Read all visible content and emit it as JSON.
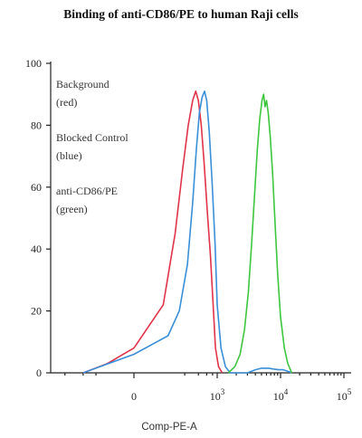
{
  "chart_data": {
    "type": "line",
    "title": "Binding of anti-CD86/PE to human Raji cells",
    "xlabel": "Comp-PE-A",
    "ylabel": "",
    "ylim": [
      0,
      100
    ],
    "x_scale": "biexponential",
    "x_ticks": [
      {
        "pos": 0,
        "main": "0",
        "exp": ""
      },
      {
        "pos": 1000,
        "main": "10",
        "exp": "3"
      },
      {
        "pos": 10000,
        "main": "10",
        "exp": "4"
      },
      {
        "pos": 100000,
        "main": "10",
        "exp": "5"
      }
    ],
    "y_ticks": [
      0,
      20,
      40,
      60,
      80,
      100
    ],
    "legend": [
      {
        "label": "Background",
        "sublabel": "(red)"
      },
      {
        "label": "Blocked Control",
        "sublabel": "(blue)"
      },
      {
        "label": "anti-CD86/PE",
        "sublabel": "(green)"
      }
    ],
    "series": [
      {
        "name": "Background (red)",
        "color": "#e0344a",
        "points": [
          [
            -200,
            0
          ],
          [
            -50,
            3
          ],
          [
            0,
            8
          ],
          [
            60,
            22
          ],
          [
            120,
            45
          ],
          [
            180,
            66
          ],
          [
            240,
            80
          ],
          [
            300,
            88
          ],
          [
            350,
            91
          ],
          [
            400,
            88
          ],
          [
            460,
            80
          ],
          [
            530,
            68
          ],
          [
            620,
            52
          ],
          [
            720,
            38
          ],
          [
            820,
            22
          ],
          [
            920,
            8
          ],
          [
            1050,
            2
          ],
          [
            1200,
            0
          ]
        ]
      },
      {
        "name": "Blocked Control (blue)",
        "color": "#3a8fd9",
        "points": [
          [
            -200,
            0
          ],
          [
            -80,
            2
          ],
          [
            0,
            6
          ],
          [
            80,
            12
          ],
          [
            150,
            20
          ],
          [
            230,
            35
          ],
          [
            300,
            55
          ],
          [
            360,
            72
          ],
          [
            420,
            84
          ],
          [
            480,
            89
          ],
          [
            540,
            91
          ],
          [
            600,
            88
          ],
          [
            680,
            78
          ],
          [
            780,
            62
          ],
          [
            900,
            42
          ],
          [
            1000,
            22
          ],
          [
            1150,
            8
          ],
          [
            1350,
            2
          ],
          [
            1600,
            0
          ],
          [
            3000,
            0
          ],
          [
            4000,
            1
          ],
          [
            5000,
            1.5
          ],
          [
            6500,
            1.5
          ],
          [
            8000,
            1.2
          ],
          [
            9500,
            1
          ],
          [
            11000,
            1
          ],
          [
            13000,
            0.5
          ],
          [
            15000,
            0
          ]
        ]
      },
      {
        "name": "anti-CD86/PE (green)",
        "color": "#3ec63e",
        "points": [
          [
            1500,
            0
          ],
          [
            1900,
            2
          ],
          [
            2300,
            6
          ],
          [
            2700,
            14
          ],
          [
            3100,
            26
          ],
          [
            3500,
            42
          ],
          [
            3900,
            58
          ],
          [
            4300,
            72
          ],
          [
            4700,
            82
          ],
          [
            5100,
            88
          ],
          [
            5400,
            90
          ],
          [
            5700,
            86
          ],
          [
            6000,
            88
          ],
          [
            6400,
            84
          ],
          [
            6900,
            76
          ],
          [
            7500,
            64
          ],
          [
            8200,
            48
          ],
          [
            9000,
            32
          ],
          [
            10000,
            18
          ],
          [
            11500,
            8
          ],
          [
            13000,
            3
          ],
          [
            15000,
            0
          ]
        ]
      }
    ]
  }
}
